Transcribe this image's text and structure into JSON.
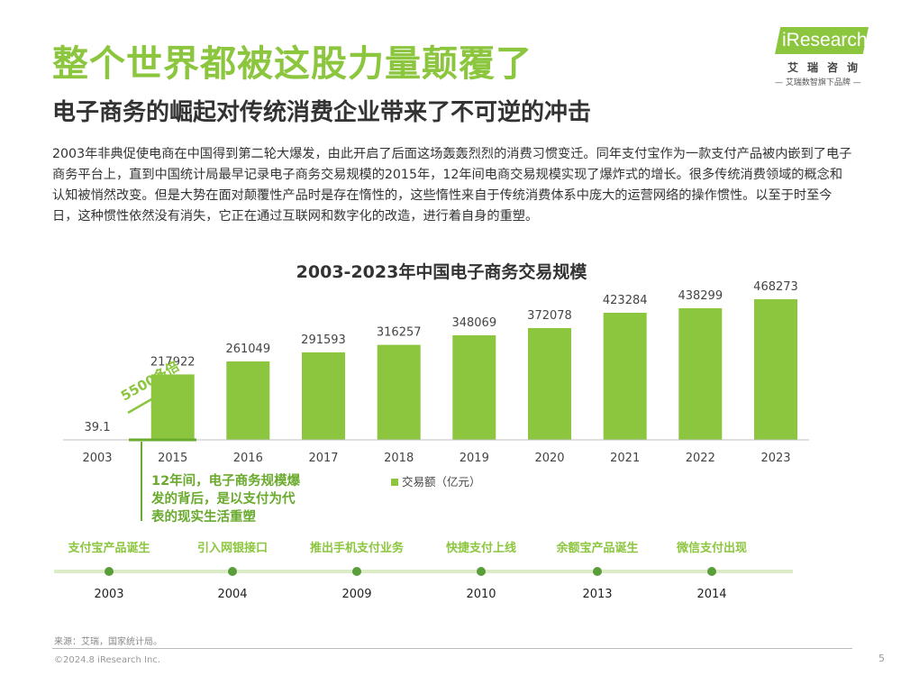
{
  "header": {
    "title": "整个世界都被这股力量颠覆了",
    "subtitle": "电子商务的崛起对传统消费企业带来了不可逆的冲击"
  },
  "logo": {
    "brand": "iResearch",
    "cn": "艾瑞咨询",
    "slogan": "— 艾瑞数智旗下品牌 —"
  },
  "body_text": "2003年非典促使电商在中国得到第二轮大爆发，由此开启了后面这场轰轰烈烈的消费习惯变迁。同年支付宝作为一款支付产品被内嵌到了电子商务平台上，直到中国统计局最早记录电子商务交易规模的2015年，12年间电商交易规模实现了爆炸式的增长。很多传统消费领域的概念和认知被悄然改变。但是大势在面对颠覆性产品时是存在惰性的，这些惰性来自于传统消费体系中庞大的运营网络的操作惯性。以至于时至今日，这种惯性依然没有消失，它正在通过互联网和数字化的改造，进行着自身的重塑。",
  "colors": {
    "accent": "#8cc63f",
    "accent_dark": "#6aaa2e",
    "timeline_line": "#dcecc6",
    "timeline_dot": "#5a9e3c"
  },
  "chart_data": {
    "type": "bar",
    "title": "2003-2023年中国电子商务交易规模",
    "categories": [
      "2003",
      "2015",
      "2016",
      "2017",
      "2018",
      "2019",
      "2020",
      "2021",
      "2022",
      "2023"
    ],
    "values": [
      39.1,
      217922,
      261049,
      291593,
      316257,
      348069,
      372078,
      423284,
      438299,
      468273
    ],
    "value_labels": [
      "39.1",
      "217922",
      "261049",
      "291593",
      "316257",
      "348069",
      "372078",
      "423284",
      "438299",
      "468273"
    ],
    "legend": "交易额（亿元）",
    "ylim": [
      0,
      468273
    ],
    "annotations": {
      "growth_label": "5500多倍",
      "gap_note_lines": [
        "12年间，电子商务规模爆",
        "发的背后，是以支付为代",
        "表的现实生活重塑"
      ]
    }
  },
  "timeline": {
    "events": [
      {
        "label": "支付宝产品诞生",
        "year": "2003"
      },
      {
        "label": "引入网银接口",
        "year": "2004"
      },
      {
        "label": "推出手机支付业务",
        "year": "2009"
      },
      {
        "label": "快捷支付上线",
        "year": "2010"
      },
      {
        "label": "余额宝产品诞生",
        "year": "2013"
      },
      {
        "label": "微信支付出现",
        "year": "2014"
      }
    ]
  },
  "footer": {
    "source": "来源：艾瑞，国家统计局。",
    "copyright": "©2024.8 iResearch Inc.",
    "page": "5"
  }
}
